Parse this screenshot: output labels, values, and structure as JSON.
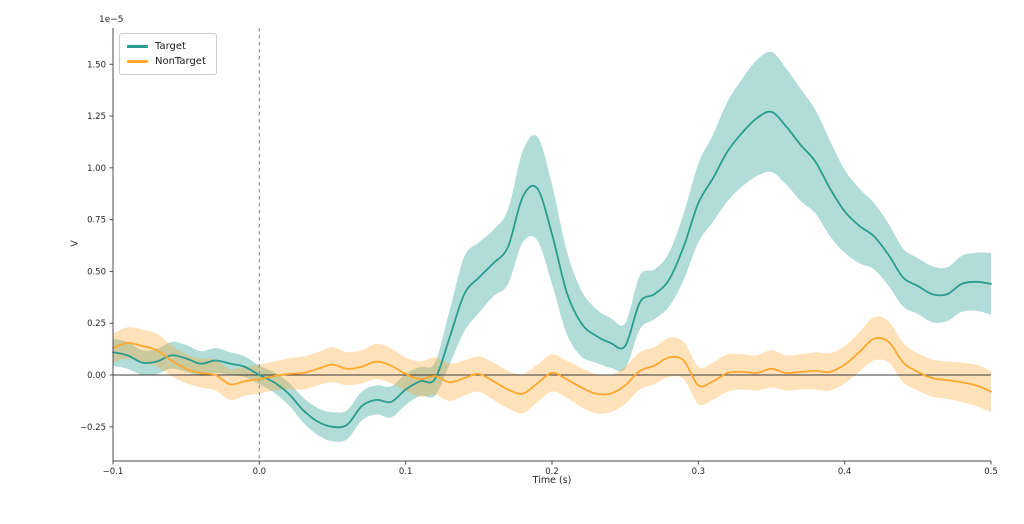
{
  "figure": {
    "background": "#ffffff",
    "title": ""
  },
  "legend": {
    "items": [
      {
        "label": "Target",
        "color": "#2a9d8f"
      },
      {
        "label": "NonTarget",
        "color": "#ffa72e"
      }
    ]
  },
  "chart_data": {
    "type": "line",
    "title": "",
    "xlabel": "Time (s)",
    "ylabel": "V",
    "y_offset_label": "1e−5",
    "y_units": "1e-5 V",
    "xlim": [
      -0.1,
      0.5
    ],
    "ylim": [
      -0.415,
      1.675
    ],
    "grid": false,
    "legend_position": "upper left",
    "vline_x": 0.0,
    "hline_y": 0.0,
    "x_ticks": [
      -0.1,
      0.0,
      0.1,
      0.2,
      0.3,
      0.4,
      0.5
    ],
    "x_tick_labels": [
      "−0.1",
      "0.0",
      "0.1",
      "0.2",
      "0.3",
      "0.4",
      "0.5"
    ],
    "y_ticks": [
      -0.25,
      0.0,
      0.25,
      0.5,
      0.75,
      1.0,
      1.25,
      1.5
    ],
    "y_tick_labels": [
      "−0.25",
      "0.00",
      "0.25",
      "0.50",
      "0.75",
      "1.00",
      "1.25",
      "1.50"
    ],
    "x": [
      -0.1,
      -0.09,
      -0.08,
      -0.07,
      -0.06,
      -0.05,
      -0.04,
      -0.03,
      -0.02,
      -0.01,
      0,
      0.01,
      0.02,
      0.03,
      0.04,
      0.05,
      0.06,
      0.07,
      0.08,
      0.09,
      0.1,
      0.11,
      0.12,
      0.13,
      0.14,
      0.15,
      0.16,
      0.17,
      0.18,
      0.19,
      0.2,
      0.21,
      0.22,
      0.23,
      0.24,
      0.25,
      0.26,
      0.27,
      0.28,
      0.29,
      0.3,
      0.31,
      0.32,
      0.33,
      0.34,
      0.35,
      0.36,
      0.37,
      0.38,
      0.39,
      0.4,
      0.41,
      0.42,
      0.43,
      0.44,
      0.45,
      0.46,
      0.47,
      0.48,
      0.49,
      0.5
    ],
    "series": [
      {
        "name": "Target",
        "color": "#2a9d8f",
        "band_alpha": 0.36,
        "values": [
          0.11,
          0.095,
          0.06,
          0.065,
          0.095,
          0.08,
          0.055,
          0.07,
          0.055,
          0.04,
          0,
          -0.035,
          -0.09,
          -0.17,
          -0.225,
          -0.25,
          -0.24,
          -0.15,
          -0.12,
          -0.13,
          -0.07,
          -0.03,
          -0.02,
          0.18,
          0.39,
          0.47,
          0.54,
          0.62,
          0.86,
          0.9,
          0.68,
          0.4,
          0.25,
          0.19,
          0.155,
          0.14,
          0.35,
          0.39,
          0.46,
          0.62,
          0.83,
          0.95,
          1.08,
          1.17,
          1.24,
          1.27,
          1.2,
          1.11,
          1.03,
          0.9,
          0.79,
          0.72,
          0.67,
          0.58,
          0.47,
          0.43,
          0.39,
          0.39,
          0.44,
          0.45,
          0.44
        ],
        "band_halfwidth": [
          0.065,
          0.065,
          0.06,
          0.06,
          0.065,
          0.065,
          0.06,
          0.06,
          0.055,
          0.05,
          0.045,
          0.05,
          0.055,
          0.06,
          0.065,
          0.07,
          0.07,
          0.07,
          0.07,
          0.075,
          0.075,
          0.07,
          0.08,
          0.13,
          0.18,
          0.17,
          0.16,
          0.18,
          0.22,
          0.25,
          0.24,
          0.2,
          0.16,
          0.13,
          0.12,
          0.11,
          0.13,
          0.12,
          0.13,
          0.16,
          0.19,
          0.21,
          0.24,
          0.26,
          0.28,
          0.29,
          0.28,
          0.27,
          0.25,
          0.23,
          0.2,
          0.18,
          0.16,
          0.15,
          0.14,
          0.135,
          0.135,
          0.13,
          0.135,
          0.14,
          0.15
        ]
      },
      {
        "name": "NonTarget",
        "color": "#ffa72e",
        "band_alpha": 0.33,
        "values": [
          0.13,
          0.155,
          0.14,
          0.12,
          0.07,
          0.03,
          0.01,
          0,
          -0.045,
          -0.03,
          -0.02,
          -0.005,
          0.005,
          0.01,
          0.03,
          0.05,
          0.03,
          0.04,
          0.065,
          0.045,
          0.005,
          -0.02,
          -0.005,
          -0.035,
          -0.015,
          0.005,
          -0.03,
          -0.07,
          -0.09,
          -0.04,
          0.01,
          -0.02,
          -0.06,
          -0.09,
          -0.09,
          -0.05,
          0.02,
          0.045,
          0.085,
          0.07,
          -0.05,
          -0.03,
          0.01,
          0.015,
          0.01,
          0.03,
          0.01,
          0.015,
          0.02,
          0.015,
          0.05,
          0.11,
          0.175,
          0.16,
          0.06,
          0.015,
          -0.015,
          -0.025,
          -0.035,
          -0.05,
          -0.08
        ],
        "band_halfwidth": [
          0.07,
          0.075,
          0.08,
          0.08,
          0.075,
          0.07,
          0.07,
          0.075,
          0.075,
          0.07,
          0.07,
          0.07,
          0.075,
          0.08,
          0.08,
          0.085,
          0.08,
          0.08,
          0.085,
          0.085,
          0.08,
          0.085,
          0.09,
          0.09,
          0.085,
          0.085,
          0.09,
          0.09,
          0.095,
          0.09,
          0.09,
          0.09,
          0.095,
          0.095,
          0.09,
          0.09,
          0.09,
          0.09,
          0.095,
          0.09,
          0.09,
          0.09,
          0.09,
          0.085,
          0.085,
          0.09,
          0.085,
          0.085,
          0.09,
          0.09,
          0.09,
          0.095,
          0.105,
          0.1,
          0.095,
          0.09,
          0.09,
          0.09,
          0.095,
          0.1,
          0.1
        ]
      }
    ],
    "styles": {
      "spine_color": "#4c4c4c",
      "tick_color": "#4c4c4c",
      "tick_label_color": "#262626",
      "zero_line_color": "#3a3a3a",
      "onset_line_color": "#8c8c8c"
    }
  }
}
